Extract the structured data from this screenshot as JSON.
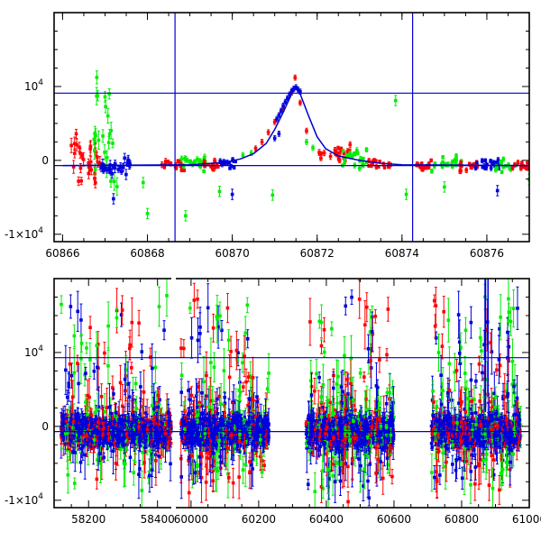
{
  "chart_data": [
    {
      "type": "scatter",
      "title": "",
      "xlabel": "",
      "ylabel": "",
      "xlim": [
        60865.8,
        60877.0
      ],
      "ylim": [
        -11000,
        20000
      ],
      "xticks": [
        60866,
        60868,
        60870,
        60872,
        60874,
        60876
      ],
      "xtick_labels": [
        "60866",
        "60868",
        "60870",
        "60872",
        "60874",
        "60876"
      ],
      "yticks": [
        -10000,
        0,
        10000
      ],
      "ytick_labels": [
        {
          "mant": "-1×10",
          "exp": "4"
        },
        {
          "mant": "0",
          "exp": ""
        },
        {
          "mant": "10",
          "exp": "4"
        }
      ],
      "hlines": [
        9100,
        -700
      ],
      "vlines": [
        60868.65,
        60874.25
      ],
      "series_colors": {
        "red": "#ff0000",
        "green": "#00ee00",
        "blue": "#0000dd"
      },
      "segments": [
        {
          "color": "red",
          "x0": 60866.2,
          "x1": 60866.9,
          "ybase": 0,
          "spread": 1800,
          "n": 28,
          "err": 700
        },
        {
          "color": "green",
          "x0": 60866.6,
          "x1": 60867.3,
          "ybase": 2500,
          "spread": 3500,
          "n": 22,
          "err": 900
        },
        {
          "color": "blue",
          "x0": 60866.9,
          "x1": 60867.6,
          "ybase": -800,
          "spread": 600,
          "n": 26,
          "err": 500
        },
        {
          "color": "red",
          "x0": 60868.3,
          "x1": 60868.9,
          "ybase": -600,
          "spread": 400,
          "n": 18,
          "err": 300
        },
        {
          "color": "green",
          "x0": 60868.8,
          "x1": 60869.4,
          "ybase": -400,
          "spread": 500,
          "n": 22,
          "err": 300
        },
        {
          "color": "red",
          "x0": 60869.3,
          "x1": 60869.8,
          "ybase": -500,
          "spread": 350,
          "n": 16,
          "err": 250
        },
        {
          "color": "blue",
          "x0": 60869.7,
          "x1": 60870.1,
          "ybase": -300,
          "spread": 350,
          "n": 14,
          "err": 250
        },
        {
          "color": "red",
          "x0": 60872.0,
          "x1": 60872.8,
          "ybase": 900,
          "spread": 600,
          "n": 26,
          "err": 300
        },
        {
          "color": "green",
          "x0": 60872.6,
          "x1": 60873.2,
          "ybase": 300,
          "spread": 600,
          "n": 22,
          "err": 300
        },
        {
          "color": "red",
          "x0": 60873.2,
          "x1": 60873.8,
          "ybase": -500,
          "spread": 400,
          "n": 18,
          "err": 250
        },
        {
          "color": "red",
          "x0": 60874.3,
          "x1": 60874.7,
          "ybase": -700,
          "spread": 350,
          "n": 14,
          "err": 250
        },
        {
          "color": "green",
          "x0": 60874.7,
          "x1": 60875.4,
          "ybase": -500,
          "spread": 450,
          "n": 22,
          "err": 250
        },
        {
          "color": "red",
          "x0": 60875.3,
          "x1": 60875.8,
          "ybase": -600,
          "spread": 350,
          "n": 16,
          "err": 250
        },
        {
          "color": "blue",
          "x0": 60875.7,
          "x1": 60876.3,
          "ybase": -500,
          "spread": 450,
          "n": 20,
          "err": 250
        },
        {
          "color": "green",
          "x0": 60876.2,
          "x1": 60876.7,
          "ybase": -800,
          "spread": 450,
          "n": 16,
          "err": 250
        },
        {
          "color": "red",
          "x0": 60876.6,
          "x1": 60877.0,
          "ybase": -900,
          "spread": 350,
          "n": 12,
          "err": 250
        }
      ],
      "event_points": [
        {
          "color": "red",
          "x": 60870.55,
          "y": 1600
        },
        {
          "color": "red",
          "x": 60870.7,
          "y": 2500
        },
        {
          "color": "red",
          "x": 60870.85,
          "y": 3800
        },
        {
          "color": "red",
          "x": 60871.0,
          "y": 5200
        },
        {
          "color": "red",
          "x": 60871.2,
          "y": 7000
        },
        {
          "color": "red",
          "x": 60871.4,
          "y": 9200
        },
        {
          "color": "red",
          "x": 60871.48,
          "y": 11200
        },
        {
          "color": "red",
          "x": 60871.6,
          "y": 7800
        },
        {
          "color": "red",
          "x": 60871.75,
          "y": 4000
        },
        {
          "color": "blue",
          "x": 60871.05,
          "y": 5600
        },
        {
          "color": "blue",
          "x": 60871.1,
          "y": 6100
        },
        {
          "color": "blue",
          "x": 60871.15,
          "y": 6700
        },
        {
          "color": "blue",
          "x": 60871.2,
          "y": 7400
        },
        {
          "color": "blue",
          "x": 60871.25,
          "y": 7900
        },
        {
          "color": "blue",
          "x": 60871.3,
          "y": 8400
        },
        {
          "color": "blue",
          "x": 60871.35,
          "y": 8900
        },
        {
          "color": "blue",
          "x": 60871.4,
          "y": 9400
        },
        {
          "color": "blue",
          "x": 60871.45,
          "y": 9700
        },
        {
          "color": "blue",
          "x": 60871.5,
          "y": 9900
        },
        {
          "color": "blue",
          "x": 60871.55,
          "y": 9600
        },
        {
          "color": "blue",
          "x": 60871.6,
          "y": 9300
        },
        {
          "color": "blue",
          "x": 60871.1,
          "y": 3600
        },
        {
          "color": "blue",
          "x": 60871.0,
          "y": 3000
        },
        {
          "color": "green",
          "x": 60870.25,
          "y": 700
        },
        {
          "color": "green",
          "x": 60870.45,
          "y": 1000
        },
        {
          "color": "green",
          "x": 60871.75,
          "y": 2500
        },
        {
          "color": "green",
          "x": 60871.9,
          "y": 1700
        }
      ],
      "outliers": [
        {
          "color": "blue",
          "x": 60867.2,
          "y": -5200
        },
        {
          "color": "green",
          "x": 60867.9,
          "y": -3000
        },
        {
          "color": "green",
          "x": 60868.0,
          "y": -7200
        },
        {
          "color": "green",
          "x": 60868.9,
          "y": -7500
        },
        {
          "color": "green",
          "x": 60869.7,
          "y": -4200
        },
        {
          "color": "blue",
          "x": 60870.0,
          "y": -4600
        },
        {
          "color": "green",
          "x": 60870.95,
          "y": -4700
        },
        {
          "color": "green",
          "x": 60873.85,
          "y": 8100
        },
        {
          "color": "green",
          "x": 60874.1,
          "y": -4600
        },
        {
          "color": "green",
          "x": 60875.0,
          "y": -3600
        },
        {
          "color": "blue",
          "x": 60876.25,
          "y": -4100
        },
        {
          "color": "green",
          "x": 60877.0,
          "y": -2600
        },
        {
          "color": "green",
          "x": 60867.0,
          "y": 8600
        },
        {
          "color": "green",
          "x": 60867.1,
          "y": 9000
        }
      ],
      "model_curve": {
        "baseline": -700,
        "peak_x": 60871.5,
        "peak_y": 9800,
        "points": [
          [
            60866.0,
            -700
          ],
          [
            60869.0,
            -600
          ],
          [
            60869.8,
            -300
          ],
          [
            60870.2,
            200
          ],
          [
            60870.5,
            900
          ],
          [
            60870.8,
            2300
          ],
          [
            60871.0,
            4200
          ],
          [
            60871.2,
            6500
          ],
          [
            60871.4,
            9000
          ],
          [
            60871.5,
            9800
          ],
          [
            60871.6,
            9000
          ],
          [
            60871.8,
            6000
          ],
          [
            60872.0,
            3200
          ],
          [
            60872.2,
            1600
          ],
          [
            60872.5,
            600
          ],
          [
            60873.0,
            0
          ],
          [
            60873.5,
            -400
          ],
          [
            60874.0,
            -600
          ],
          [
            60877.0,
            -700
          ]
        ]
      }
    },
    {
      "type": "scatter",
      "title": "",
      "xlabel": "",
      "ylabel": "",
      "xlim": [
        58100,
        61000
      ],
      "ylim": [
        -11000,
        20000
      ],
      "xticks": [
        58200,
        58400,
        60000,
        60200,
        60400,
        60600,
        60800,
        61000
      ],
      "xtick_labels": [
        "58200",
        "58400",
        "60000",
        "60200",
        "60400",
        "60600",
        "60800",
        "61000"
      ],
      "yticks": [
        -10000,
        0,
        10000
      ],
      "ytick_labels": [
        {
          "mant": "-1×10",
          "exp": "4"
        },
        {
          "mant": "0",
          "exp": ""
        },
        {
          "mant": "10",
          "exp": "4"
        }
      ],
      "hlines": [
        9300,
        -700
      ],
      "season_bands": [
        {
          "x0": 58120,
          "x1": 58440
        },
        {
          "x0": 59970,
          "x1": 60230
        },
        {
          "x0": 60340,
          "x1": 60600
        },
        {
          "x0": 60710,
          "x1": 60975
        }
      ],
      "spike_x": 60870,
      "series_colors": {
        "red": "#ff0000",
        "green": "#00ee00",
        "blue": "#0000dd"
      }
    }
  ]
}
